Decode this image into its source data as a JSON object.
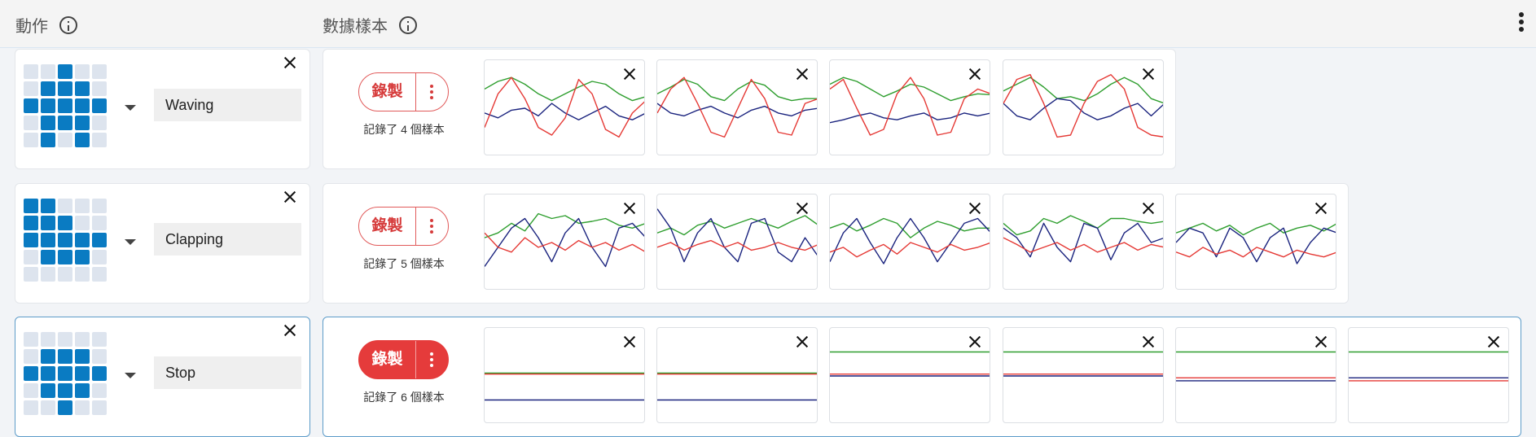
{
  "header": {
    "actions_label": "動作",
    "samples_label": "數據樣本"
  },
  "colors": {
    "red": "#e53935",
    "green": "#2e9e2e",
    "blue": "#1a237e",
    "led_on": "#0a7bc2",
    "led_off": "#dde4ee"
  },
  "actions": [
    {
      "name": "Waving",
      "record_label": "錄製",
      "sample_count_text": "記錄了 4 個樣本",
      "selected": false,
      "led": [
        0,
        0,
        1,
        0,
        0,
        0,
        1,
        1,
        1,
        0,
        1,
        1,
        1,
        1,
        1,
        0,
        1,
        1,
        1,
        0,
        0,
        1,
        0,
        1,
        0
      ],
      "samples": [
        {
          "green": [
            0.3,
            0.22,
            0.18,
            0.25,
            0.35,
            0.42,
            0.35,
            0.28,
            0.22,
            0.25,
            0.35,
            0.42,
            0.38
          ],
          "red": [
            0.7,
            0.35,
            0.18,
            0.4,
            0.7,
            0.78,
            0.6,
            0.2,
            0.35,
            0.72,
            0.8,
            0.55,
            0.42
          ],
          "blue": [
            0.55,
            0.6,
            0.52,
            0.5,
            0.58,
            0.45,
            0.55,
            0.62,
            0.55,
            0.48,
            0.58,
            0.62,
            0.55
          ]
        },
        {
          "green": [
            0.35,
            0.28,
            0.2,
            0.25,
            0.38,
            0.42,
            0.3,
            0.22,
            0.26,
            0.38,
            0.42,
            0.4,
            0.4
          ],
          "red": [
            0.55,
            0.3,
            0.18,
            0.45,
            0.75,
            0.8,
            0.5,
            0.2,
            0.4,
            0.75,
            0.78,
            0.45,
            0.4
          ],
          "blue": [
            0.45,
            0.55,
            0.58,
            0.52,
            0.48,
            0.55,
            0.6,
            0.52,
            0.48,
            0.55,
            0.58,
            0.52,
            0.5
          ]
        },
        {
          "green": [
            0.25,
            0.18,
            0.22,
            0.3,
            0.38,
            0.32,
            0.25,
            0.28,
            0.35,
            0.42,
            0.38,
            0.35,
            0.36
          ],
          "red": [
            0.3,
            0.2,
            0.5,
            0.78,
            0.72,
            0.35,
            0.18,
            0.4,
            0.78,
            0.75,
            0.4,
            0.3,
            0.35
          ],
          "blue": [
            0.65,
            0.62,
            0.58,
            0.55,
            0.6,
            0.62,
            0.58,
            0.55,
            0.62,
            0.6,
            0.55,
            0.58,
            0.55
          ]
        },
        {
          "green": [
            0.32,
            0.25,
            0.18,
            0.28,
            0.4,
            0.38,
            0.42,
            0.35,
            0.25,
            0.18,
            0.25,
            0.4,
            0.45
          ],
          "red": [
            0.45,
            0.2,
            0.15,
            0.45,
            0.8,
            0.78,
            0.45,
            0.22,
            0.15,
            0.3,
            0.7,
            0.78,
            0.8
          ],
          "blue": [
            0.45,
            0.58,
            0.62,
            0.5,
            0.4,
            0.42,
            0.55,
            0.62,
            0.58,
            0.5,
            0.45,
            0.58,
            0.45
          ]
        }
      ]
    },
    {
      "name": "Clapping",
      "record_label": "錄製",
      "sample_count_text": "記錄了 5 個樣本",
      "selected": false,
      "led": [
        1,
        1,
        0,
        0,
        0,
        1,
        1,
        1,
        0,
        0,
        1,
        1,
        1,
        1,
        1,
        0,
        1,
        1,
        1,
        0,
        0,
        0,
        0,
        0,
        0
      ],
      "samples": [
        {
          "green": [
            0.45,
            0.4,
            0.3,
            0.38,
            0.2,
            0.25,
            0.22,
            0.3,
            0.28,
            0.25,
            0.32,
            0.35,
            0.3
          ],
          "red": [
            0.4,
            0.55,
            0.6,
            0.45,
            0.55,
            0.5,
            0.58,
            0.48,
            0.55,
            0.5,
            0.58,
            0.52,
            0.6
          ],
          "blue": [
            0.75,
            0.55,
            0.35,
            0.25,
            0.45,
            0.7,
            0.4,
            0.25,
            0.55,
            0.75,
            0.35,
            0.3,
            0.45
          ]
        },
        {
          "green": [
            0.4,
            0.35,
            0.42,
            0.32,
            0.28,
            0.35,
            0.3,
            0.25,
            0.3,
            0.35,
            0.28,
            0.22,
            0.32
          ],
          "red": [
            0.55,
            0.5,
            0.58,
            0.52,
            0.48,
            0.55,
            0.5,
            0.58,
            0.55,
            0.5,
            0.55,
            0.58,
            0.52
          ],
          "blue": [
            0.15,
            0.35,
            0.7,
            0.4,
            0.25,
            0.55,
            0.7,
            0.3,
            0.25,
            0.6,
            0.7,
            0.45,
            0.65
          ]
        },
        {
          "green": [
            0.35,
            0.3,
            0.38,
            0.32,
            0.25,
            0.3,
            0.45,
            0.35,
            0.28,
            0.32,
            0.38,
            0.35,
            0.35
          ],
          "red": [
            0.6,
            0.55,
            0.65,
            0.58,
            0.52,
            0.62,
            0.5,
            0.55,
            0.6,
            0.52,
            0.58,
            0.55,
            0.5
          ],
          "blue": [
            0.7,
            0.4,
            0.25,
            0.5,
            0.72,
            0.45,
            0.25,
            0.45,
            0.7,
            0.5,
            0.3,
            0.25,
            0.4
          ]
        },
        {
          "green": [
            0.3,
            0.42,
            0.38,
            0.25,
            0.3,
            0.22,
            0.28,
            0.35,
            0.25,
            0.25,
            0.28,
            0.3,
            0.28
          ],
          "red": [
            0.45,
            0.52,
            0.6,
            0.55,
            0.5,
            0.58,
            0.52,
            0.6,
            0.55,
            0.5,
            0.58,
            0.52,
            0.55
          ],
          "blue": [
            0.35,
            0.45,
            0.65,
            0.3,
            0.55,
            0.7,
            0.3,
            0.35,
            0.68,
            0.4,
            0.3,
            0.5,
            0.45
          ]
        },
        {
          "green": [
            0.4,
            0.35,
            0.3,
            0.38,
            0.32,
            0.42,
            0.35,
            0.3,
            0.4,
            0.35,
            0.32,
            0.38,
            0.3
          ],
          "red": [
            0.6,
            0.65,
            0.55,
            0.62,
            0.58,
            0.65,
            0.55,
            0.6,
            0.65,
            0.58,
            0.62,
            0.65,
            0.6
          ],
          "blue": [
            0.5,
            0.35,
            0.4,
            0.65,
            0.35,
            0.45,
            0.7,
            0.45,
            0.35,
            0.72,
            0.5,
            0.35,
            0.4
          ]
        }
      ]
    },
    {
      "name": "Stop",
      "record_label": "錄製",
      "sample_count_text": "記錄了 6 個樣本",
      "selected": true,
      "led": [
        0,
        0,
        0,
        0,
        0,
        0,
        1,
        1,
        1,
        0,
        1,
        1,
        1,
        1,
        1,
        0,
        1,
        1,
        1,
        0,
        0,
        0,
        1,
        0,
        0
      ],
      "samples": [
        {
          "green": [
            0.47
          ],
          "red": [
            0.48
          ],
          "blue": [
            0.75
          ]
        },
        {
          "green": [
            0.47
          ],
          "red": [
            0.48
          ],
          "blue": [
            0.75
          ]
        },
        {
          "green": [
            0.25
          ],
          "red": [
            0.48
          ],
          "blue": [
            0.5
          ]
        },
        {
          "green": [
            0.25
          ],
          "red": [
            0.48
          ],
          "blue": [
            0.5
          ]
        },
        {
          "green": [
            0.25
          ],
          "red": [
            0.52
          ],
          "blue": [
            0.55
          ]
        },
        {
          "green": [
            0.25
          ],
          "red": [
            0.55
          ],
          "blue": [
            0.52
          ]
        }
      ]
    }
  ]
}
